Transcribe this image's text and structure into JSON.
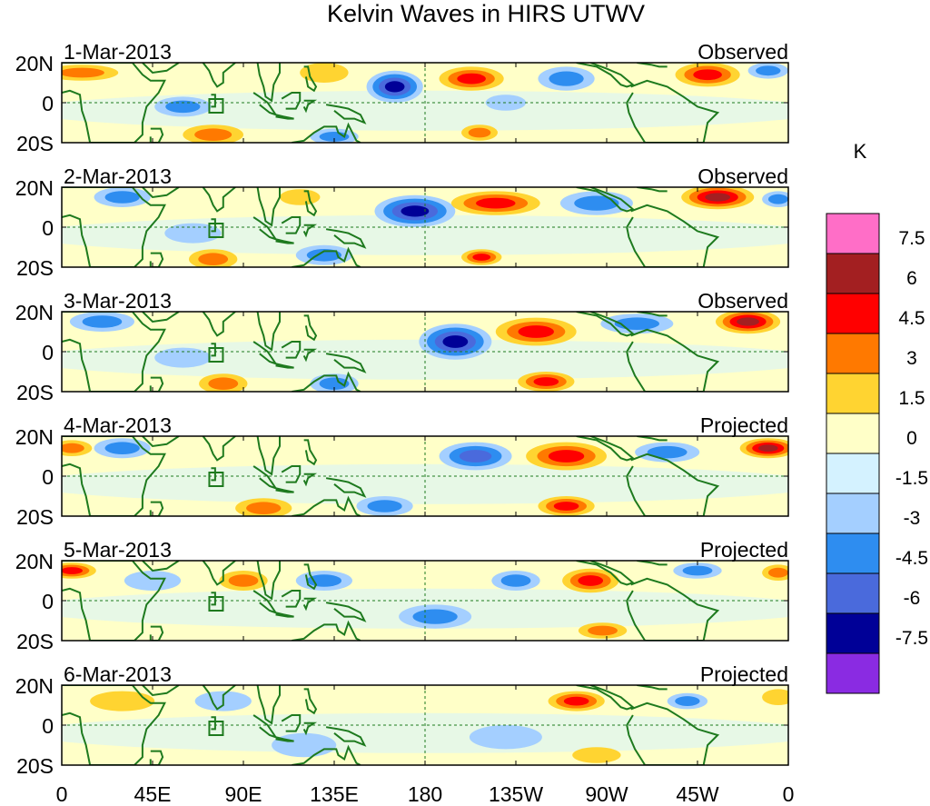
{
  "chart_data": {
    "type": "heatmap",
    "title": "Kelvin Waves in HIRS UTWV",
    "colorbar": {
      "unit": "K",
      "tick_labels": [
        "7.5",
        "6",
        "4.5",
        "3",
        "1.5",
        "0",
        "-1.5",
        "-3",
        "-4.5",
        "-6",
        "-7.5"
      ],
      "colors": [
        "#ff6ec7",
        "#a31f21",
        "#ff0000",
        "#ff7900",
        "#ffd431",
        "#ffffc8",
        "#d4f2ff",
        "#a4cfff",
        "#2e8df0",
        "#4a6adc",
        "#000097",
        "#8a2be2"
      ]
    },
    "x_tick_labels": [
      "0",
      "45E",
      "90E",
      "135E",
      "180",
      "135W",
      "90W",
      "45W",
      "0"
    ],
    "y_tick_labels": [
      "20N",
      "0",
      "20S"
    ],
    "xlim": [
      0,
      360
    ],
    "ylim": [
      -20,
      20
    ],
    "panels": [
      {
        "date": "1-Mar-2013",
        "label": "Observed",
        "features": [
          {
            "lon": 10,
            "lat": 15,
            "rx": 18,
            "ry": 4,
            "value": 3
          },
          {
            "lon": 60,
            "lat": -2,
            "rx": 14,
            "ry": 5,
            "value": -3
          },
          {
            "lon": 75,
            "lat": -16,
            "rx": 15,
            "ry": 5,
            "value": 3
          },
          {
            "lon": 130,
            "lat": 15,
            "rx": 12,
            "ry": 5,
            "value": 1.5
          },
          {
            "lon": 135,
            "lat": -17,
            "rx": 12,
            "ry": 4,
            "value": -3
          },
          {
            "lon": 165,
            "lat": 8,
            "rx": 14,
            "ry": 8,
            "value": -6
          },
          {
            "lon": 203,
            "lat": 12,
            "rx": 16,
            "ry": 6,
            "value": 4.5
          },
          {
            "lon": 207,
            "lat": -15,
            "rx": 9,
            "ry": 4,
            "value": 3
          },
          {
            "lon": 220,
            "lat": 0,
            "rx": 10,
            "ry": 4,
            "value": -1.5
          },
          {
            "lon": 250,
            "lat": 12,
            "rx": 14,
            "ry": 6,
            "value": -3
          },
          {
            "lon": 320,
            "lat": 14,
            "rx": 16,
            "ry": 6,
            "value": 4.5
          },
          {
            "lon": 350,
            "lat": 16,
            "rx": 10,
            "ry": 4,
            "value": -3
          }
        ]
      },
      {
        "date": "2-Mar-2013",
        "label": "Observed",
        "features": [
          {
            "lon": 30,
            "lat": 15,
            "rx": 14,
            "ry": 5,
            "value": -3
          },
          {
            "lon": 65,
            "lat": -3,
            "rx": 14,
            "ry": 5,
            "value": -1.5
          },
          {
            "lon": 75,
            "lat": -16,
            "rx": 12,
            "ry": 5,
            "value": 3
          },
          {
            "lon": 118,
            "lat": 15,
            "rx": 10,
            "ry": 4,
            "value": 1.5
          },
          {
            "lon": 130,
            "lat": -14,
            "rx": 14,
            "ry": 5,
            "value": -3
          },
          {
            "lon": 175,
            "lat": 8,
            "rx": 20,
            "ry": 8,
            "value": -6
          },
          {
            "lon": 215,
            "lat": 12,
            "rx": 22,
            "ry": 6,
            "value": 4.5
          },
          {
            "lon": 208,
            "lat": -15,
            "rx": 10,
            "ry": 4,
            "value": 4.5
          },
          {
            "lon": 265,
            "lat": 12,
            "rx": 18,
            "ry": 6,
            "value": -3
          },
          {
            "lon": 325,
            "lat": 15,
            "rx": 18,
            "ry": 6,
            "value": 6
          },
          {
            "lon": 355,
            "lat": 14,
            "rx": 8,
            "ry": 4,
            "value": -3
          }
        ]
      },
      {
        "date": "3-Mar-2013",
        "label": "Observed",
        "features": [
          {
            "lon": 20,
            "lat": 15,
            "rx": 16,
            "ry": 5,
            "value": -3
          },
          {
            "lon": 60,
            "lat": -3,
            "rx": 14,
            "ry": 5,
            "value": -1.5
          },
          {
            "lon": 80,
            "lat": -16,
            "rx": 12,
            "ry": 5,
            "value": 3
          },
          {
            "lon": 135,
            "lat": -16,
            "rx": 12,
            "ry": 5,
            "value": -3
          },
          {
            "lon": 195,
            "lat": 5,
            "rx": 18,
            "ry": 9,
            "value": -6
          },
          {
            "lon": 235,
            "lat": 10,
            "rx": 20,
            "ry": 7,
            "value": 4.5
          },
          {
            "lon": 240,
            "lat": -15,
            "rx": 14,
            "ry": 5,
            "value": 4.5
          },
          {
            "lon": 285,
            "lat": 14,
            "rx": 18,
            "ry": 5,
            "value": -3
          },
          {
            "lon": 340,
            "lat": 15,
            "rx": 16,
            "ry": 6,
            "value": 6
          }
        ]
      },
      {
        "date": "4-Mar-2013",
        "label": "Projected",
        "features": [
          {
            "lon": 5,
            "lat": 14,
            "rx": 10,
            "ry": 4,
            "value": 3
          },
          {
            "lon": 30,
            "lat": 14,
            "rx": 14,
            "ry": 5,
            "value": -3
          },
          {
            "lon": 100,
            "lat": -16,
            "rx": 14,
            "ry": 5,
            "value": 3
          },
          {
            "lon": 160,
            "lat": -15,
            "rx": 14,
            "ry": 5,
            "value": -3
          },
          {
            "lon": 205,
            "lat": 10,
            "rx": 18,
            "ry": 7,
            "value": -4.5
          },
          {
            "lon": 250,
            "lat": 10,
            "rx": 20,
            "ry": 7,
            "value": 4.5
          },
          {
            "lon": 250,
            "lat": -15,
            "rx": 14,
            "ry": 5,
            "value": 4.5
          },
          {
            "lon": 300,
            "lat": 12,
            "rx": 16,
            "ry": 5,
            "value": -3
          },
          {
            "lon": 350,
            "lat": 14,
            "rx": 14,
            "ry": 5,
            "value": 6
          }
        ]
      },
      {
        "date": "5-Mar-2013",
        "label": "Projected",
        "features": [
          {
            "lon": 5,
            "lat": 15,
            "rx": 12,
            "ry": 4,
            "value": 4.5
          },
          {
            "lon": 45,
            "lat": 10,
            "rx": 14,
            "ry": 5,
            "value": -1.5
          },
          {
            "lon": 90,
            "lat": 10,
            "rx": 12,
            "ry": 5,
            "value": 3
          },
          {
            "lon": 130,
            "lat": 10,
            "rx": 14,
            "ry": 5,
            "value": -3
          },
          {
            "lon": 185,
            "lat": -8,
            "rx": 18,
            "ry": 6,
            "value": -3
          },
          {
            "lon": 225,
            "lat": 10,
            "rx": 12,
            "ry": 5,
            "value": -3
          },
          {
            "lon": 262,
            "lat": 10,
            "rx": 14,
            "ry": 6,
            "value": 4.5
          },
          {
            "lon": 268,
            "lat": -15,
            "rx": 12,
            "ry": 4,
            "value": 3
          },
          {
            "lon": 315,
            "lat": 15,
            "rx": 12,
            "ry": 4,
            "value": -3
          },
          {
            "lon": 355,
            "lat": 14,
            "rx": 8,
            "ry": 4,
            "value": 3
          }
        ]
      },
      {
        "date": "6-Mar-2013",
        "label": "Projected",
        "features": [
          {
            "lon": 30,
            "lat": 12,
            "rx": 16,
            "ry": 5,
            "value": 1.5
          },
          {
            "lon": 80,
            "lat": 12,
            "rx": 14,
            "ry": 5,
            "value": -1.5
          },
          {
            "lon": 120,
            "lat": -10,
            "rx": 16,
            "ry": 6,
            "value": -1.5
          },
          {
            "lon": 220,
            "lat": -6,
            "rx": 18,
            "ry": 6,
            "value": -1.5
          },
          {
            "lon": 255,
            "lat": 12,
            "rx": 14,
            "ry": 5,
            "value": 4.5
          },
          {
            "lon": 265,
            "lat": -15,
            "rx": 12,
            "ry": 4,
            "value": 1.5
          },
          {
            "lon": 310,
            "lat": 12,
            "rx": 10,
            "ry": 4,
            "value": -3
          },
          {
            "lon": 355,
            "lat": 14,
            "rx": 8,
            "ry": 4,
            "value": 1.5
          }
        ]
      }
    ]
  }
}
